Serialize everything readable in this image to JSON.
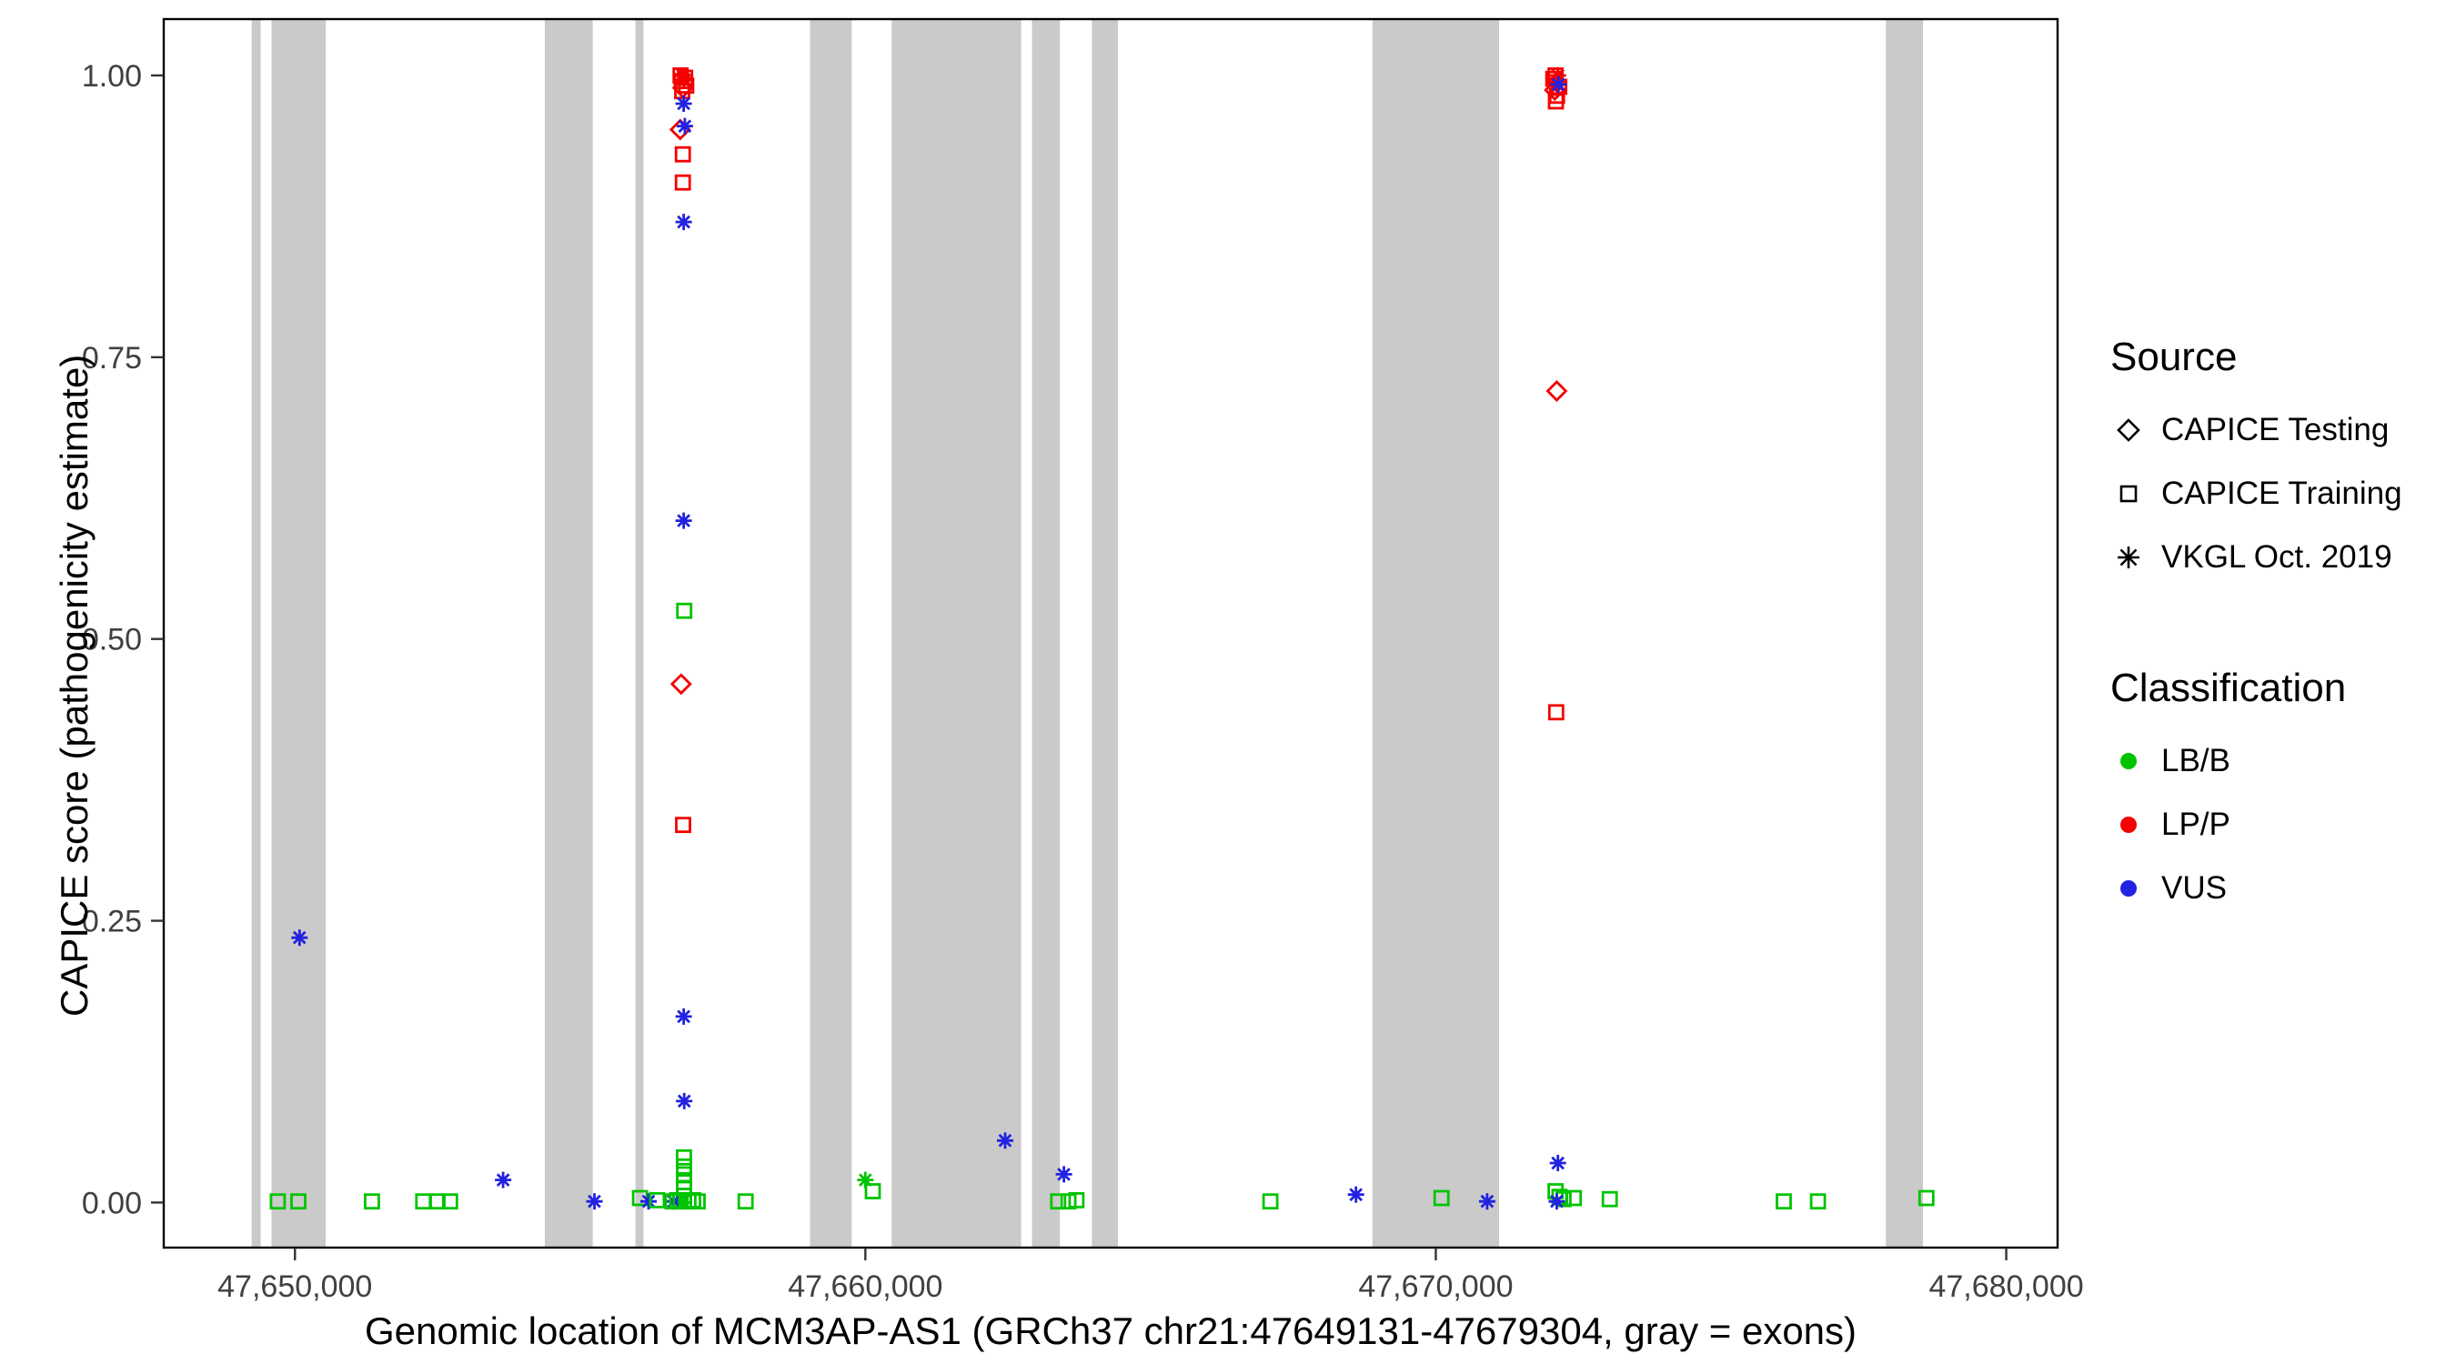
{
  "chart_data": {
    "type": "scatter",
    "xlabel": "Genomic location of MCM3AP-AS1 (GRCh37 chr21:47649131-47679304, gray = exons)",
    "ylabel": "CAPICE score (pathogenicity estimate)",
    "xlim": [
      47647700,
      47680900
    ],
    "ylim": [
      -0.04,
      1.05
    ],
    "xticks": [
      {
        "value": 47650000,
        "label": "47,650,000"
      },
      {
        "value": 47660000,
        "label": "47,660,000"
      },
      {
        "value": 47670000,
        "label": "47,670,000"
      },
      {
        "value": 47680000,
        "label": "47,680,000"
      }
    ],
    "yticks": [
      {
        "value": 0.0,
        "label": "0.00"
      },
      {
        "value": 0.25,
        "label": "0.25"
      },
      {
        "value": 0.5,
        "label": "0.50"
      },
      {
        "value": 0.75,
        "label": "0.75"
      },
      {
        "value": 1.0,
        "label": "1.00"
      }
    ],
    "colors": {
      "LB/B": "#00c400",
      "LP/P": "#f40000",
      "VUS": "#2222e0",
      "exon": "#cacaca"
    },
    "exons": [
      [
        47649240,
        47649400
      ],
      [
        47649590,
        47650540
      ],
      [
        47654380,
        47655220
      ],
      [
        47655970,
        47656110
      ],
      [
        47659030,
        47659760
      ],
      [
        47660460,
        47662730
      ],
      [
        47662920,
        47663410
      ],
      [
        47663970,
        47664430
      ],
      [
        47668890,
        47671110
      ],
      [
        47677890,
        47678540
      ]
    ],
    "legend": {
      "source": {
        "title": "Source",
        "items": [
          {
            "label": "CAPICE Testing",
            "shape": "diamond"
          },
          {
            "label": "CAPICE Training",
            "shape": "square"
          },
          {
            "label": "VKGL Oct. 2019",
            "shape": "asterisk"
          }
        ]
      },
      "classification": {
        "title": "Classification",
        "items": [
          {
            "label": "LB/B",
            "color_key": "LB/B"
          },
          {
            "label": "LP/P",
            "color_key": "LP/P"
          },
          {
            "label": "VUS",
            "color_key": "VUS"
          }
        ]
      }
    },
    "points": [
      {
        "x": 47650080,
        "y": 0.235,
        "s": "vkgl",
        "c": "VUS"
      },
      {
        "x": 47649700,
        "y": 0.001,
        "s": "training",
        "c": "LB/B"
      },
      {
        "x": 47650060,
        "y": 0.001,
        "s": "training",
        "c": "LB/B"
      },
      {
        "x": 47651350,
        "y": 0.001,
        "s": "training",
        "c": "LB/B"
      },
      {
        "x": 47652250,
        "y": 0.001,
        "s": "training",
        "c": "LB/B"
      },
      {
        "x": 47652500,
        "y": 0.001,
        "s": "training",
        "c": "LB/B"
      },
      {
        "x": 47652720,
        "y": 0.001,
        "s": "training",
        "c": "LB/B"
      },
      {
        "x": 47653650,
        "y": 0.02,
        "s": "vkgl",
        "c": "VUS"
      },
      {
        "x": 47655250,
        "y": 0.001,
        "s": "vkgl",
        "c": "VUS"
      },
      {
        "x": 47656050,
        "y": 0.004,
        "s": "training",
        "c": "LB/B"
      },
      {
        "x": 47656200,
        "y": 0.001,
        "s": "vkgl",
        "c": "VUS"
      },
      {
        "x": 47656350,
        "y": 0.002,
        "s": "training",
        "c": "LB/B"
      },
      {
        "x": 47656760,
        "y": 1.0,
        "s": "training",
        "c": "LP/P"
      },
      {
        "x": 47656800,
        "y": 1.0,
        "s": "vkgl",
        "c": "LP/P"
      },
      {
        "x": 47656840,
        "y": 0.998,
        "s": "training",
        "c": "LP/P"
      },
      {
        "x": 47656780,
        "y": 0.995,
        "s": "training",
        "c": "LP/P"
      },
      {
        "x": 47656820,
        "y": 0.996,
        "s": "vkgl",
        "c": "LP/P"
      },
      {
        "x": 47656860,
        "y": 0.991,
        "s": "training",
        "c": "LP/P"
      },
      {
        "x": 47656800,
        "y": 0.989,
        "s": "testing",
        "c": "LP/P"
      },
      {
        "x": 47656790,
        "y": 0.986,
        "s": "training",
        "c": "LP/P"
      },
      {
        "x": 47656815,
        "y": 0.975,
        "s": "vkgl",
        "c": "VUS"
      },
      {
        "x": 47656755,
        "y": 0.952,
        "s": "testing",
        "c": "LP/P"
      },
      {
        "x": 47656835,
        "y": 0.955,
        "s": "vkgl",
        "c": "VUS"
      },
      {
        "x": 47656800,
        "y": 0.93,
        "s": "training",
        "c": "LP/P"
      },
      {
        "x": 47656800,
        "y": 0.905,
        "s": "training",
        "c": "LP/P"
      },
      {
        "x": 47656815,
        "y": 0.87,
        "s": "vkgl",
        "c": "VUS"
      },
      {
        "x": 47656815,
        "y": 0.605,
        "s": "vkgl",
        "c": "VUS"
      },
      {
        "x": 47656825,
        "y": 0.525,
        "s": "training",
        "c": "LB/B"
      },
      {
        "x": 47656770,
        "y": 0.46,
        "s": "testing",
        "c": "LP/P"
      },
      {
        "x": 47656805,
        "y": 0.335,
        "s": "training",
        "c": "LP/P"
      },
      {
        "x": 47656815,
        "y": 0.165,
        "s": "vkgl",
        "c": "VUS"
      },
      {
        "x": 47656825,
        "y": 0.09,
        "s": "vkgl",
        "c": "VUS"
      },
      {
        "x": 47656820,
        "y": 0.04,
        "s": "training",
        "c": "LB/B"
      },
      {
        "x": 47656820,
        "y": 0.032,
        "s": "training",
        "c": "LB/B"
      },
      {
        "x": 47656820,
        "y": 0.025,
        "s": "training",
        "c": "LB/B"
      },
      {
        "x": 47656820,
        "y": 0.018,
        "s": "training",
        "c": "LB/B"
      },
      {
        "x": 47656820,
        "y": 0.012,
        "s": "training",
        "c": "LB/B"
      },
      {
        "x": 47656820,
        "y": 0.006,
        "s": "training",
        "c": "LB/B"
      },
      {
        "x": 47656640,
        "y": 0.001,
        "s": "vkgl",
        "c": "VUS"
      },
      {
        "x": 47656620,
        "y": 0.001,
        "s": "training",
        "c": "LB/B"
      },
      {
        "x": 47656700,
        "y": 0.002,
        "s": "training",
        "c": "LB/B"
      },
      {
        "x": 47656760,
        "y": 0.001,
        "s": "training",
        "c": "LB/B"
      },
      {
        "x": 47656900,
        "y": 0.001,
        "s": "training",
        "c": "LB/B"
      },
      {
        "x": 47656980,
        "y": 0.002,
        "s": "training",
        "c": "LB/B"
      },
      {
        "x": 47657060,
        "y": 0.001,
        "s": "training",
        "c": "LB/B"
      },
      {
        "x": 47657900,
        "y": 0.001,
        "s": "training",
        "c": "LB/B"
      },
      {
        "x": 47660000,
        "y": 0.02,
        "s": "vkgl",
        "c": "LB/B"
      },
      {
        "x": 47660130,
        "y": 0.01,
        "s": "training",
        "c": "LB/B"
      },
      {
        "x": 47662450,
        "y": 0.055,
        "s": "vkgl",
        "c": "VUS"
      },
      {
        "x": 47663480,
        "y": 0.025,
        "s": "vkgl",
        "c": "VUS"
      },
      {
        "x": 47663380,
        "y": 0.001,
        "s": "training",
        "c": "LB/B"
      },
      {
        "x": 47663560,
        "y": 0.001,
        "s": "training",
        "c": "LB/B"
      },
      {
        "x": 47663700,
        "y": 0.002,
        "s": "training",
        "c": "LB/B"
      },
      {
        "x": 47667100,
        "y": 0.001,
        "s": "training",
        "c": "LB/B"
      },
      {
        "x": 47668600,
        "y": 0.007,
        "s": "vkgl",
        "c": "VUS"
      },
      {
        "x": 47670100,
        "y": 0.004,
        "s": "training",
        "c": "LB/B"
      },
      {
        "x": 47670900,
        "y": 0.001,
        "s": "vkgl",
        "c": "VUS"
      },
      {
        "x": 47672100,
        "y": 1.0,
        "s": "training",
        "c": "LP/P"
      },
      {
        "x": 47672140,
        "y": 1.0,
        "s": "vkgl",
        "c": "LP/P"
      },
      {
        "x": 47672060,
        "y": 0.997,
        "s": "training",
        "c": "LP/P"
      },
      {
        "x": 47672120,
        "y": 0.994,
        "s": "testing",
        "c": "LP/P"
      },
      {
        "x": 47672165,
        "y": 0.99,
        "s": "training",
        "c": "LP/P"
      },
      {
        "x": 47672085,
        "y": 0.987,
        "s": "testing",
        "c": "LP/P"
      },
      {
        "x": 47672125,
        "y": 0.982,
        "s": "training",
        "c": "LP/P"
      },
      {
        "x": 47672150,
        "y": 0.992,
        "s": "vkgl",
        "c": "VUS"
      },
      {
        "x": 47672105,
        "y": 0.977,
        "s": "training",
        "c": "LP/P"
      },
      {
        "x": 47672120,
        "y": 0.72,
        "s": "testing",
        "c": "LP/P"
      },
      {
        "x": 47672110,
        "y": 0.435,
        "s": "training",
        "c": "LP/P"
      },
      {
        "x": 47672140,
        "y": 0.035,
        "s": "vkgl",
        "c": "VUS"
      },
      {
        "x": 47672100,
        "y": 0.01,
        "s": "training",
        "c": "LB/B"
      },
      {
        "x": 47672170,
        "y": 0.005,
        "s": "training",
        "c": "LB/B"
      },
      {
        "x": 47672240,
        "y": 0.003,
        "s": "training",
        "c": "LB/B"
      },
      {
        "x": 47672120,
        "y": 0.001,
        "s": "vkgl",
        "c": "VUS"
      },
      {
        "x": 47672420,
        "y": 0.004,
        "s": "training",
        "c": "LB/B"
      },
      {
        "x": 47673050,
        "y": 0.003,
        "s": "training",
        "c": "LB/B"
      },
      {
        "x": 47676100,
        "y": 0.001,
        "s": "training",
        "c": "LB/B"
      },
      {
        "x": 47676700,
        "y": 0.001,
        "s": "training",
        "c": "LB/B"
      },
      {
        "x": 47678600,
        "y": 0.004,
        "s": "training",
        "c": "LB/B"
      }
    ]
  }
}
